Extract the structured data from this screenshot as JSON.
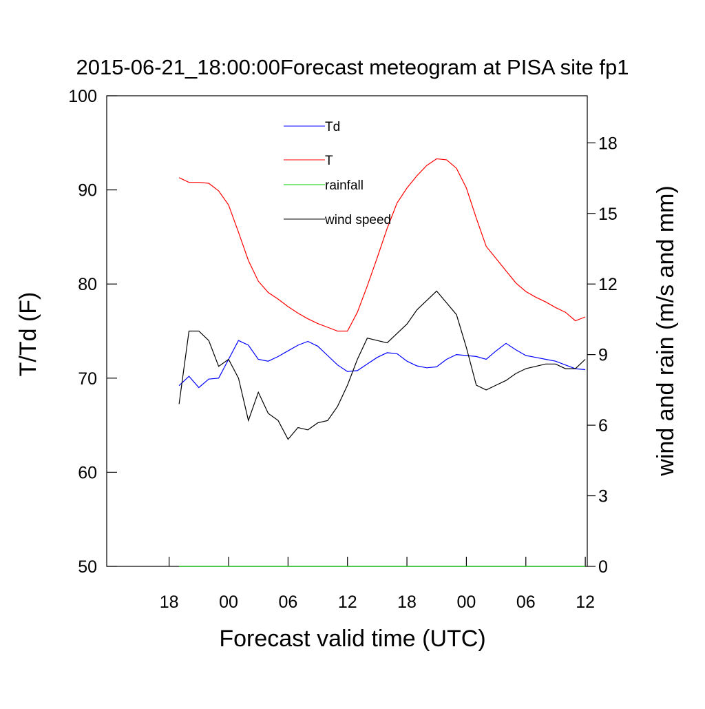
{
  "chart_data": {
    "type": "line",
    "title": "2015-06-21_18:00:00Forecast meteogram at PISA site fp1",
    "x_label": "Forecast valid time (UTC)",
    "y_label": "T/Td (F)",
    "y2_label": "wind and rain (m/s and mm)",
    "x": [
      19,
      20,
      21,
      22,
      23,
      24,
      25,
      26,
      27,
      28,
      29,
      30,
      31,
      32,
      33,
      34,
      35,
      36,
      37,
      38,
      39,
      40,
      41,
      42,
      43,
      44,
      45,
      46,
      47,
      48,
      49,
      50,
      51,
      52,
      53,
      54,
      55,
      56,
      57,
      58,
      59,
      60
    ],
    "series": [
      {
        "name": "Td",
        "color": "#0000ff",
        "values": [
          69.2,
          70.2,
          69.0,
          69.9,
          70.0,
          72.0,
          74.0,
          73.5,
          72.0,
          71.8,
          72.3,
          72.9,
          73.5,
          73.9,
          73.4,
          72.4,
          71.4,
          70.7,
          70.8,
          71.5,
          72.2,
          72.7,
          72.6,
          71.8,
          71.3,
          71.1,
          71.2,
          72.0,
          72.5,
          72.4,
          72.3,
          72.0,
          72.9,
          73.7,
          73.0,
          72.4,
          72.2,
          72.0,
          71.8,
          71.4,
          71.0,
          70.9
        ]
      },
      {
        "name": "T",
        "color": "#ff0000",
        "values": [
          91.3,
          90.8,
          90.8,
          90.7,
          89.9,
          88.4,
          85.5,
          82.5,
          80.3,
          79.1,
          78.4,
          77.6,
          76.9,
          76.3,
          75.8,
          75.4,
          75.0,
          75.0,
          77.0,
          79.8,
          82.8,
          85.9,
          88.6,
          90.2,
          91.5,
          92.6,
          93.3,
          93.2,
          92.3,
          90.2,
          87.0,
          84.0,
          82.7,
          81.4,
          80.1,
          79.2,
          78.6,
          78.1,
          77.5,
          77.0,
          76.1,
          76.5
        ]
      },
      {
        "name": "rainfall",
        "color": "#00cc00",
        "axis": "y2",
        "values": [
          0,
          0,
          0,
          0,
          0,
          0,
          0,
          0,
          0,
          0,
          0,
          0,
          0,
          0,
          0,
          0,
          0,
          0,
          0,
          0,
          0,
          0,
          0,
          0,
          0,
          0,
          0,
          0,
          0,
          0,
          0,
          0,
          0,
          0,
          0,
          0,
          0,
          0,
          0,
          0,
          0,
          0
        ]
      },
      {
        "name": "wind speed",
        "color": "#000000",
        "axis": "y2",
        "values": [
          6.9,
          10.0,
          10.0,
          9.6,
          8.5,
          8.8,
          8.0,
          6.2,
          7.4,
          6.5,
          6.2,
          5.4,
          5.9,
          5.8,
          6.1,
          6.2,
          6.8,
          7.7,
          8.8,
          9.7,
          9.6,
          9.5,
          9.9,
          10.3,
          10.9,
          11.3,
          11.7,
          11.2,
          10.7,
          9.3,
          7.7,
          7.5,
          7.7,
          7.9,
          8.2,
          8.4,
          8.5,
          8.6,
          8.6,
          8.4,
          8.4,
          8.8
        ]
      }
    ],
    "xlim": [
      11.7,
      60.2
    ],
    "xticks": [
      {
        "value": 18,
        "label": "18"
      },
      {
        "value": 24,
        "label": "00"
      },
      {
        "value": 30,
        "label": "06"
      },
      {
        "value": 36,
        "label": "12"
      },
      {
        "value": 42,
        "label": "18"
      },
      {
        "value": 48,
        "label": "00"
      },
      {
        "value": 54,
        "label": "06"
      },
      {
        "value": 60,
        "label": "12"
      }
    ],
    "ylim": [
      50,
      100
    ],
    "yticks": [
      50,
      60,
      70,
      80,
      90,
      100
    ],
    "y2lim": [
      0,
      20
    ],
    "y2ticks": [
      0,
      3,
      6,
      9,
      12,
      15,
      18
    ],
    "legend": "top-center",
    "grid": false
  }
}
